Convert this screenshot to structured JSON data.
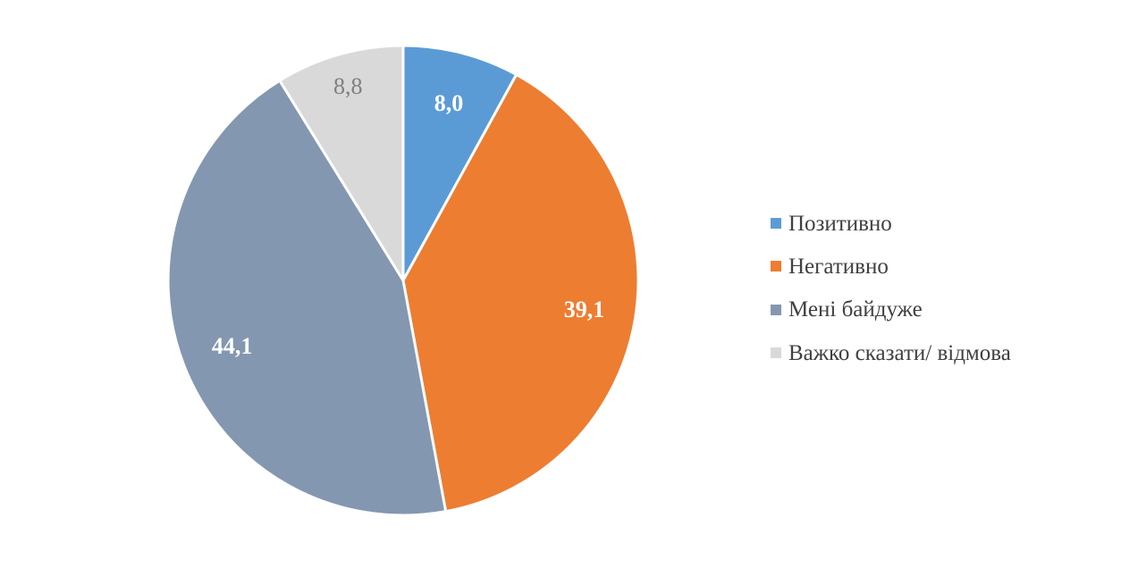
{
  "chart_data": {
    "type": "pie",
    "categories": [
      "Позитивно",
      "Негативно",
      "Мені байдуже",
      "Важко сказати/ відмова"
    ],
    "values": [
      8.0,
      39.1,
      44.1,
      8.8
    ],
    "data_labels": [
      "8,0",
      "39,1",
      "44,1",
      "8,8"
    ],
    "colors": [
      "#5b9bd5",
      "#ed7d31",
      "#8497b0",
      "#d9d9d9"
    ],
    "label_colors": [
      "#ffffff",
      "#ffffff",
      "#ffffff",
      "#7f7f7f"
    ],
    "label_bold": [
      true,
      true,
      true,
      false
    ],
    "start_angle": "12 o'clock",
    "direction": "clockwise",
    "legend_position": "right"
  }
}
